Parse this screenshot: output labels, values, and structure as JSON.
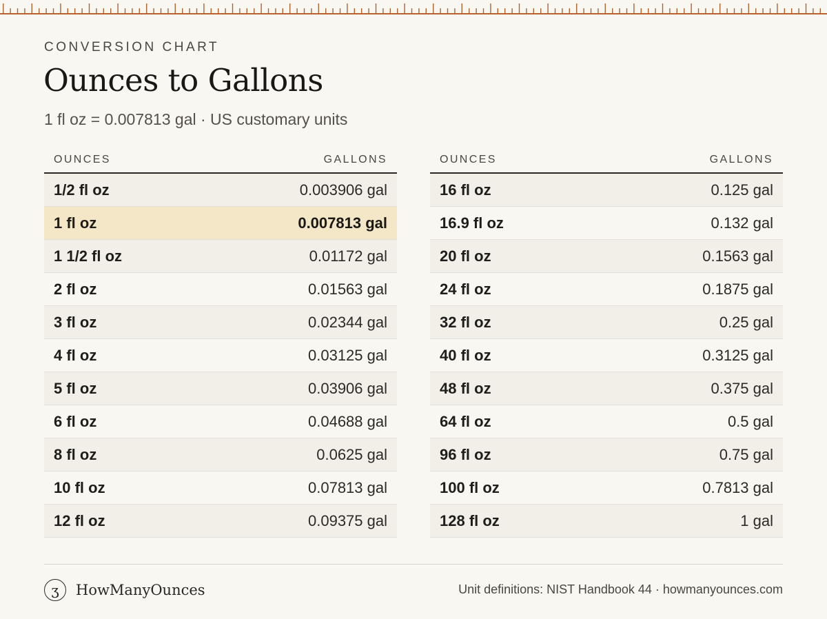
{
  "header": {
    "eyebrow": "CONVERSION CHART",
    "title": "Ounces to Gallons",
    "subtitle": "1 fl oz = 0.007813 gal · US customary units"
  },
  "columns": {
    "ounces": "OUNCES",
    "gallons": "GALLONS"
  },
  "table_left": [
    {
      "oz": "1/2 fl oz",
      "gal": "0.003906 gal"
    },
    {
      "oz": "1 fl oz",
      "gal": "0.007813 gal",
      "highlight": true
    },
    {
      "oz": "1 1/2 fl oz",
      "gal": "0.01172 gal"
    },
    {
      "oz": "2 fl oz",
      "gal": "0.01563 gal"
    },
    {
      "oz": "3 fl oz",
      "gal": "0.02344 gal"
    },
    {
      "oz": "4 fl oz",
      "gal": "0.03125 gal"
    },
    {
      "oz": "5 fl oz",
      "gal": "0.03906 gal"
    },
    {
      "oz": "6 fl oz",
      "gal": "0.04688 gal"
    },
    {
      "oz": "8 fl oz",
      "gal": "0.0625 gal"
    },
    {
      "oz": "10 fl oz",
      "gal": "0.07813 gal"
    },
    {
      "oz": "12 fl oz",
      "gal": "0.09375 gal"
    }
  ],
  "table_right": [
    {
      "oz": "16 fl oz",
      "gal": "0.125 gal"
    },
    {
      "oz": "16.9 fl oz",
      "gal": "0.132 gal"
    },
    {
      "oz": "20 fl oz",
      "gal": "0.1563 gal"
    },
    {
      "oz": "24 fl oz",
      "gal": "0.1875 gal"
    },
    {
      "oz": "32 fl oz",
      "gal": "0.25 gal"
    },
    {
      "oz": "40 fl oz",
      "gal": "0.3125 gal"
    },
    {
      "oz": "48 fl oz",
      "gal": "0.375 gal"
    },
    {
      "oz": "64 fl oz",
      "gal": "0.5 gal"
    },
    {
      "oz": "96 fl oz",
      "gal": "0.75 gal"
    },
    {
      "oz": "100 fl oz",
      "gal": "0.7813 gal"
    },
    {
      "oz": "128 fl oz",
      "gal": "1 gal"
    }
  ],
  "footer": {
    "logo_glyph": "ʒ",
    "brand": "HowManyOunces",
    "credits": "Unit definitions: NIST Handbook 44 · howmanyounces.com"
  },
  "colors": {
    "background": "#f9f7f2",
    "ruler": "#b5622e",
    "highlight": "#f4e7c8",
    "stripe": "#f2efe8"
  },
  "icons": {
    "ruler": "ruler-ticks-icon",
    "logo": "brand-logo-icon"
  }
}
